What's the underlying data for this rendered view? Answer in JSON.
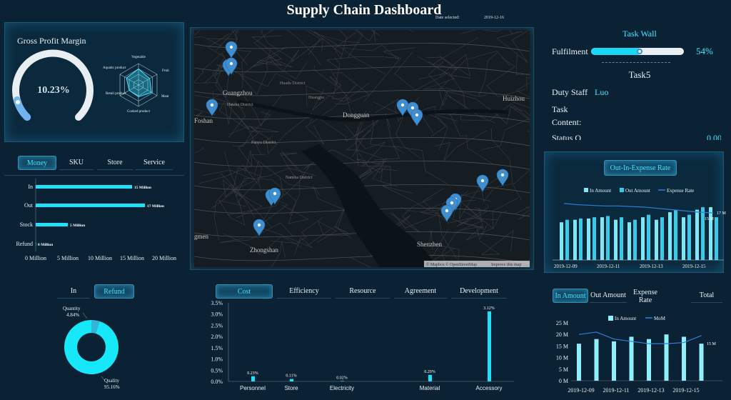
{
  "header": {
    "title": "Supply Chain Dashboard",
    "date_label": "Date selected:",
    "date_value": "2019-12-16"
  },
  "gross_profit": {
    "title": "Gross Profit Margin",
    "value_text": "10.23%",
    "value": 10.23
  },
  "radar": {
    "axes": [
      "Vegetable",
      "Fruit",
      "Meat",
      "Cooked product",
      "Retail product",
      "Aquatic product"
    ],
    "values": [
      0.75,
      0.6,
      0.7,
      0.55,
      0.5,
      0.65
    ]
  },
  "money_tabs": [
    "Money",
    "SKU",
    "Store",
    "Service"
  ],
  "money_chart": {
    "type": "bar",
    "categories": [
      "In",
      "Out",
      "Stock",
      "Refund"
    ],
    "values": [
      15,
      17,
      5,
      0
    ],
    "labels": [
      "15 Million",
      "17 Million",
      "5 Million",
      "0 Million"
    ],
    "xticks": [
      "0 Million",
      "5 Million",
      "10 Million",
      "15 Million",
      "20 Million"
    ],
    "xlim": [
      0,
      20
    ]
  },
  "map": {
    "places": {
      "guangzhou": "Guangzhou",
      "haizhu": "Haizhu District",
      "foshan": "Foshan",
      "dongguan": "Dongguan",
      "huizhou": "Huizhou",
      "zhongshan": "Zhongshan",
      "shenzhen": "Shenzhen",
      "panyu": "Panyu District",
      "huadu": "Huadu District",
      "huangpu": "Huangpu",
      "nansha": "Nansha District",
      "jiangmen": "gmen"
    },
    "attribution": {
      "mapbox": "© Mapbox",
      "osm": "© OpenStreetMap",
      "improve": "Improve this map"
    }
  },
  "task": {
    "title": "Task Wall",
    "fulfil_label": "Fulfilment",
    "fulfil_pct": 54,
    "fulfil_text": "54%",
    "task_name": "Task5",
    "staff_label": "Duty Staff",
    "staff_value": "Luo",
    "content_label_1": "Task",
    "content_label_2": "Content:",
    "status_partial": "Status Q",
    "status_val_partial": "0.00"
  },
  "expense": {
    "title": "Out-In-Expense Rate",
    "legend": [
      "In Amount",
      "Out Amount",
      "Expense Rate"
    ],
    "x_labels": [
      "2019-12-09",
      "2019-12-11",
      "2019-12-13",
      "2019-12-15"
    ],
    "end_label": "17 M",
    "mid_label": "15 M",
    "chart_data": {
      "type": "bar",
      "in_values": [
        15,
        16,
        16.5,
        17,
        16,
        15,
        17,
        16,
        19,
        17,
        20,
        21
      ],
      "out_values": [
        16,
        16.5,
        17,
        17.5,
        17,
        16,
        18,
        17,
        20,
        18,
        21,
        17
      ],
      "rate_values": [
        0.9,
        0.88,
        0.87,
        0.86,
        0.86,
        0.85,
        0.84,
        0.82,
        0.8,
        0.78,
        0.76,
        0.75
      ]
    },
    "colors": {
      "in": "#7fe8f7",
      "out": "#3bc9e8",
      "rate": "#2f7fd6"
    }
  },
  "in_refund": {
    "tabs": [
      "In",
      "Refund"
    ],
    "chart_data": {
      "type": "pie",
      "labels": [
        "Quantity",
        "Quality"
      ],
      "values": [
        4.84,
        95.16
      ],
      "texts": [
        "4.84%",
        "95.16%"
      ]
    }
  },
  "cost": {
    "tabs": [
      "Cost",
      "Efficiency",
      "Resource",
      "Agreement",
      "Development"
    ],
    "chart_data": {
      "type": "bar",
      "categories": [
        "Personnel",
        "Store",
        "Electricity",
        "Material",
        "Accessory"
      ],
      "values": [
        0.23,
        0.11,
        0.02,
        0.29,
        3.12
      ],
      "labels": [
        "0.23%",
        "0.11%",
        "0.02%",
        "0.29%",
        "3.12%"
      ],
      "yticks": [
        "0.0%",
        "0.5%",
        "1.0%",
        "1.5%",
        "2.0%",
        "2.5%",
        "3.0%",
        "3.5%"
      ],
      "ylim": [
        0,
        3.5
      ]
    }
  },
  "amount": {
    "tabs": [
      "In Amount",
      "Out Amount",
      "Expense Rate",
      "Total"
    ],
    "legend": [
      "In Amount",
      "MoM"
    ],
    "yticks": [
      "0 M",
      "5 M",
      "10 M",
      "15 M",
      "20 M",
      "25 M"
    ],
    "x_labels": [
      "2019-12-09",
      "2019-12-11",
      "2019-12-13",
      "2019-12-15"
    ],
    "end_label": "15 M",
    "chart_data": {
      "type": "bar",
      "values": [
        16,
        18,
        17,
        19,
        18,
        20,
        19,
        16
      ],
      "mom": [
        20,
        21,
        18,
        17,
        16,
        16,
        16.5,
        19.5
      ],
      "ylim": [
        0,
        25
      ]
    }
  }
}
